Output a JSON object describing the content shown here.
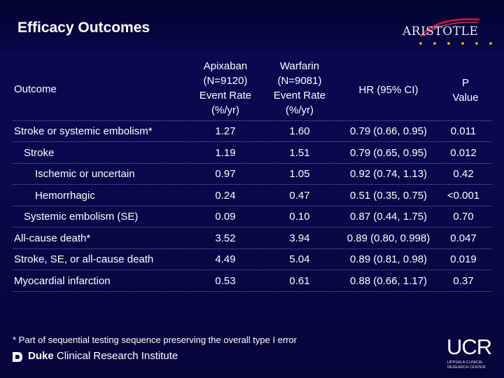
{
  "slide": {
    "title": "Efficacy Outcomes",
    "logo_text": "ARISTOTLE"
  },
  "table": {
    "headers": {
      "outcome": "Outcome",
      "apixaban": [
        "Apixaban",
        "(N=9120)",
        "Event Rate",
        "(%/yr)"
      ],
      "warfarin": [
        "Warfarin",
        "(N=9081)",
        "Event Rate",
        "(%/yr)"
      ],
      "hr": "HR (95% CI)",
      "p": [
        "P",
        "Value"
      ]
    },
    "rows": [
      {
        "outcome": "Stroke or systemic embolism*",
        "apixaban": "1.27",
        "warfarin": "1.60",
        "hr": "0.79 (0.66, 0.95)",
        "p": "0.011",
        "indent": 0
      },
      {
        "outcome": "Stroke",
        "apixaban": "1.19",
        "warfarin": "1.51",
        "hr": "0.79 (0.65, 0.95)",
        "p": "0.012",
        "indent": 1
      },
      {
        "outcome": "Ischemic or uncertain",
        "apixaban": "0.97",
        "warfarin": "1.05",
        "hr": "0.92 (0.74, 1.13)",
        "p": "0.42",
        "indent": 2
      },
      {
        "outcome": "Hemorrhagic",
        "apixaban": "0.24",
        "warfarin": "0.47",
        "hr": "0.51 (0.35, 0.75)",
        "p": "<0.001",
        "indent": 2
      },
      {
        "outcome": "Systemic embolism (SE)",
        "apixaban": "0.09",
        "warfarin": "0.10",
        "hr": "0.87 (0.44, 1.75)",
        "p": "0.70",
        "indent": 1
      },
      {
        "outcome": "All-cause death*",
        "apixaban": "3.52",
        "warfarin": "3.94",
        "hr": "0.89 (0.80, 0.998)",
        "p": "0.047",
        "indent": 0
      },
      {
        "outcome": "Stroke, SE, or all-cause death",
        "apixaban": "4.49",
        "warfarin": "5.04",
        "hr": "0.89 (0.81, 0.98)",
        "p": "0.019",
        "indent": 0
      },
      {
        "outcome": "Myocardial infarction",
        "apixaban": "0.53",
        "warfarin": "0.61",
        "hr": "0.88 (0.66, 1.17)",
        "p": "0.37",
        "indent": 0
      }
    ]
  },
  "footnote": "* Part of sequential testing sequence preserving the overall type I error",
  "footer_logos": {
    "duke_bold": "Duke",
    "duke_rest": "Clinical Research Institute",
    "ucr_mark": "UCR",
    "ucr_sub": [
      "UPPSALA CLINICAL",
      "RESEARCH CENTER"
    ]
  },
  "colors": {
    "background": "#08084a",
    "text": "#ffffff",
    "logo_accent": "#d3a020",
    "logo_arc": "#c0143c"
  }
}
